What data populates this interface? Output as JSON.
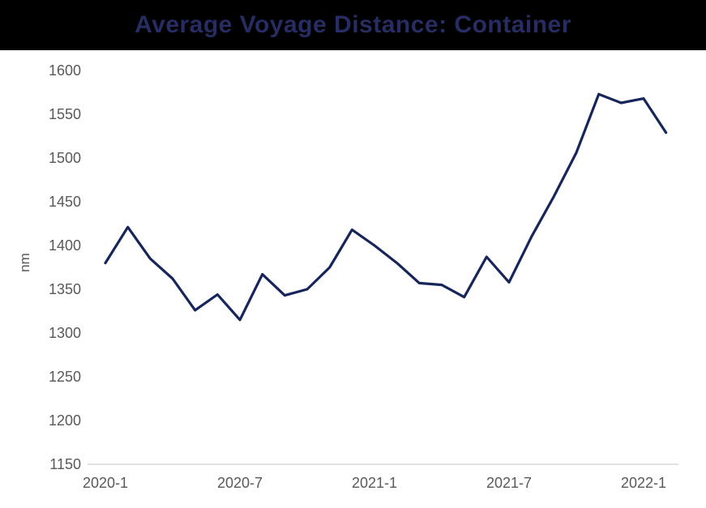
{
  "chart_data": {
    "type": "line",
    "title": "Average Voyage Distance: Container",
    "xlabel": "",
    "ylabel": "nm",
    "ylim": [
      1150,
      1600
    ],
    "grid": false,
    "legend": "none",
    "categories": [
      "2020-1",
      "2020-2",
      "2020-3",
      "2020-4",
      "2020-5",
      "2020-6",
      "2020-7",
      "2020-8",
      "2020-9",
      "2020-10",
      "2020-11",
      "2020-12",
      "2021-1",
      "2021-2",
      "2021-3",
      "2021-4",
      "2021-5",
      "2021-6",
      "2021-7",
      "2021-8",
      "2021-9",
      "2021-10",
      "2021-11",
      "2021-12",
      "2022-1",
      "2022-2"
    ],
    "series": [
      {
        "name": "Average Voyage Distance: Container",
        "values": [
          1380,
          1421,
          1385,
          1362,
          1326,
          1344,
          1315,
          1367,
          1343,
          1350,
          1375,
          1418,
          1400,
          1380,
          1357,
          1355,
          1341,
          1387,
          1358,
          1410,
          1456,
          1506,
          1573,
          1563,
          1568,
          1529
        ]
      }
    ],
    "yticks": [
      1600,
      1550,
      1500,
      1450,
      1400,
      1350,
      1300,
      1250,
      1200,
      1150
    ],
    "xticks": [
      {
        "label": "2020-1",
        "index": 0
      },
      {
        "label": "2020-7",
        "index": 6
      },
      {
        "label": "2021-1",
        "index": 12
      },
      {
        "label": "2021-7",
        "index": 18
      },
      {
        "label": "2022-1",
        "index": 24
      }
    ],
    "colors": {
      "line": "#17265a",
      "title_text": "#272c62",
      "title_band": "#000000",
      "axis_text": "#595959",
      "axis_line": "#d9d9d9",
      "background": "#ffffff"
    }
  }
}
